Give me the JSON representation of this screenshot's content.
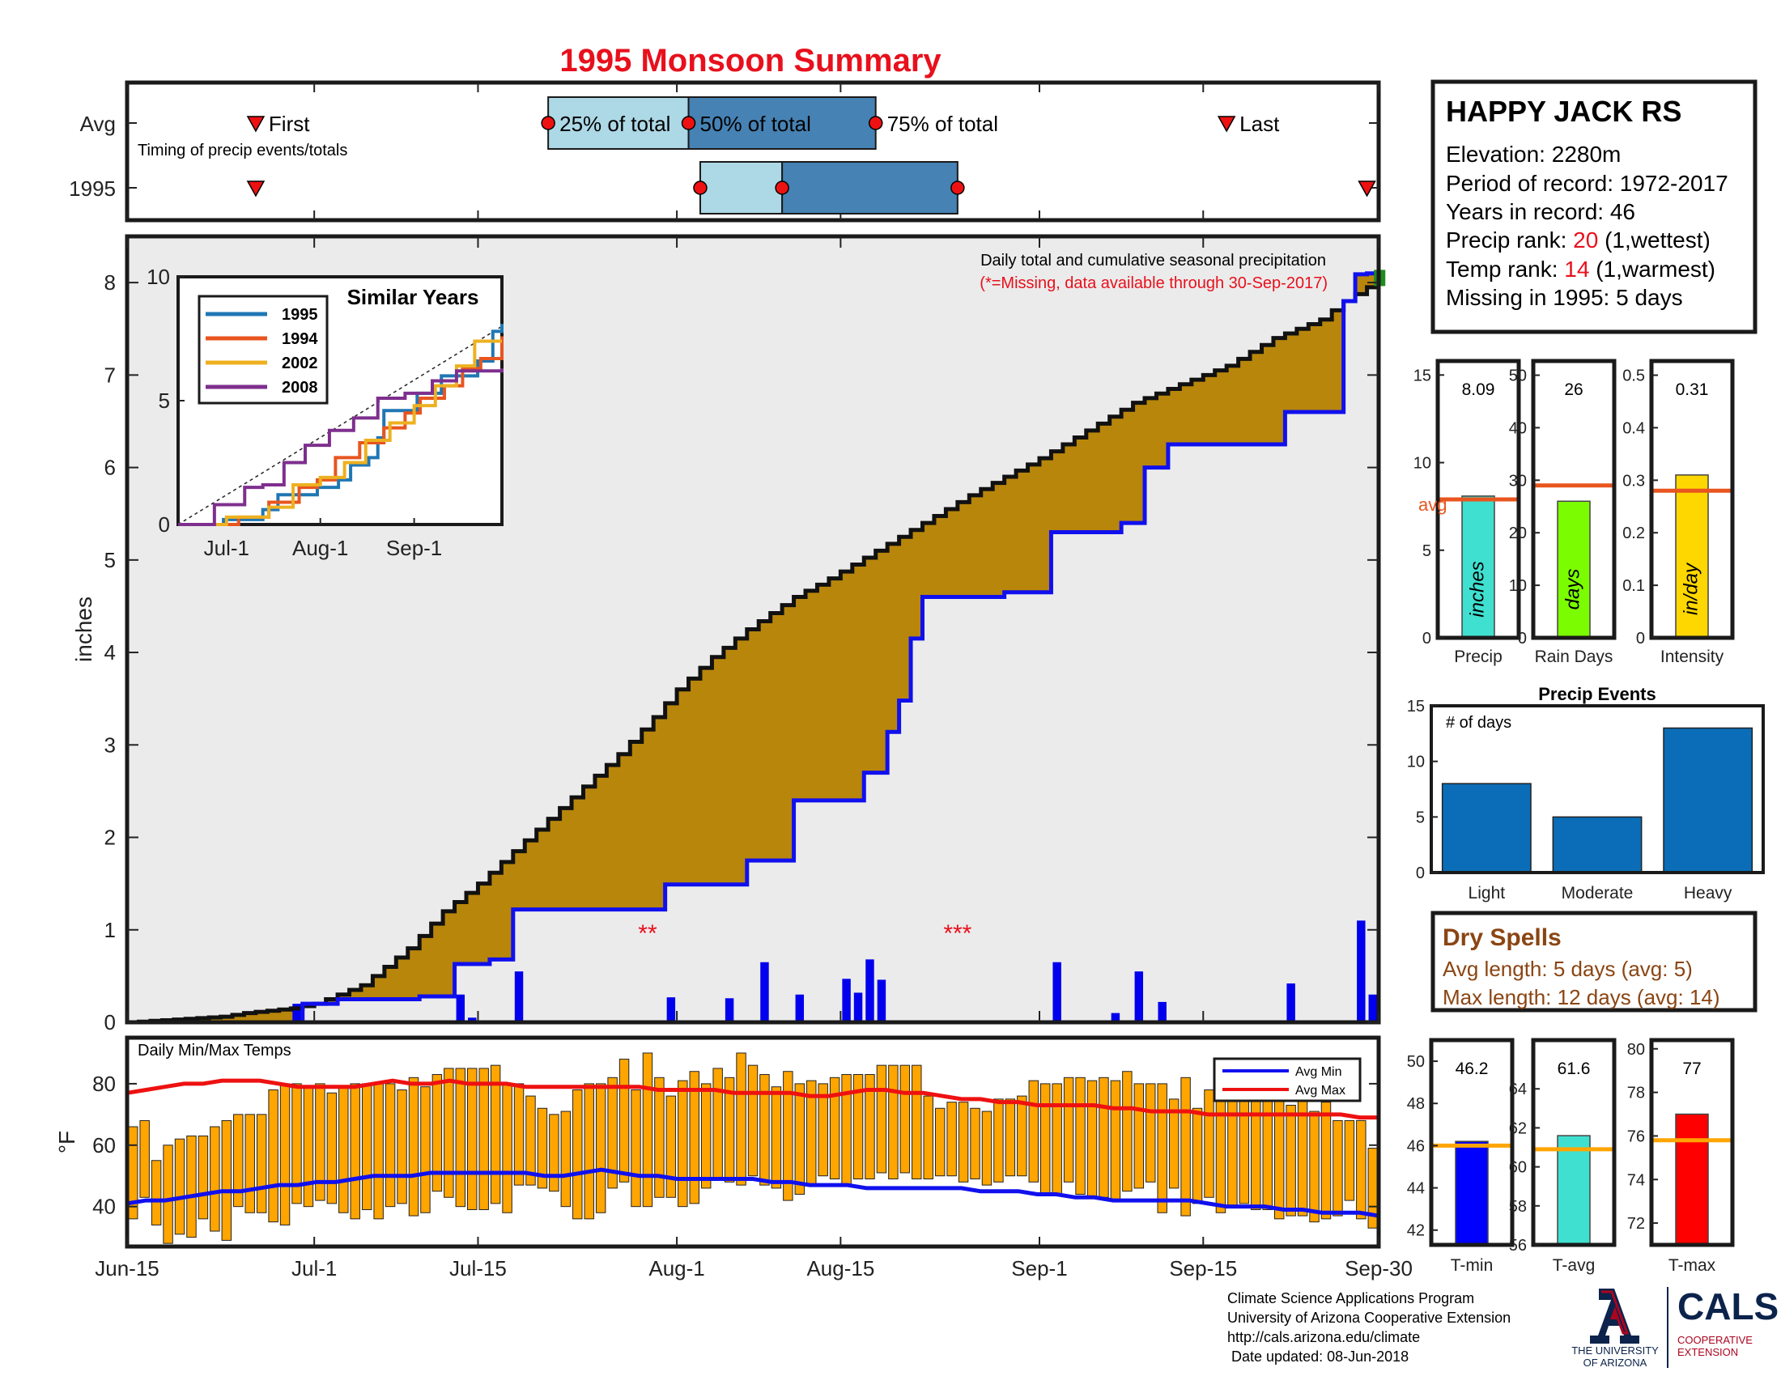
{
  "title": "1995 Monsoon Summary",
  "timing": {
    "row_labels": [
      "Avg",
      "1995"
    ],
    "note": "Timing of precip events/totals",
    "x_range_days": [
      0,
      107
    ],
    "avg": {
      "first_day": 11,
      "q25_day": 36,
      "q50_day": 48,
      "q75_day": 64,
      "last_day": 94,
      "first_label": "First",
      "q25_label": "25% of total",
      "q50_label": "50% of total",
      "q75_label": "75% of total",
      "last_label": "Last"
    },
    "year": {
      "first_day": 11,
      "q25_day": 49,
      "q50_day": 56,
      "q75_day": 71,
      "last_day": 106
    }
  },
  "station": {
    "name": "HAPPY JACK RS",
    "elevation": "Elevation: 2280m",
    "period": "Period of record: 1972-2017",
    "years": "Years in record: 46",
    "precip_rank_prefix": "Precip rank: ",
    "precip_rank_value": "20",
    "precip_rank_suffix": " (1,wettest)",
    "temp_rank_prefix": "Temp rank: ",
    "temp_rank_value": "14",
    "temp_rank_suffix": " (1,warmest)",
    "missing": "Missing in 1995: 5 days"
  },
  "colors": {
    "title": "#e8101c",
    "precip_fill": "#b8860b",
    "cum_year": "#1010ee",
    "q_light": "#add8e6",
    "q_dark": "#4682b4",
    "bar_blue": "#0b6db7",
    "temp_bar": "#ffa500",
    "avg_line": "#e8551f",
    "accent_red": "#e8101c",
    "dry_brown": "#8b4513"
  },
  "chart_data": [
    {
      "type": "area",
      "name": "precip-main",
      "annotation": "Daily total and cumulative seasonal precipitation",
      "annotation_red": "(*=Missing, data available through 30-Sep-2017)",
      "ylabel": "inches",
      "ylim": [
        0,
        8.5
      ],
      "yticks": [
        0,
        1,
        2,
        3,
        4,
        5,
        6,
        7,
        8
      ],
      "xlim_days": [
        0,
        107
      ],
      "x_tick_days": [
        0,
        16,
        30,
        47,
        61,
        78,
        92,
        107
      ],
      "x_tick_labels": [
        "Jun-15",
        "Jul-1",
        "Jul-15",
        "Aug-1",
        "Aug-15",
        "Sep-1",
        "Sep-15",
        "Sep-30"
      ],
      "missing_markers": [
        {
          "day": 44.5,
          "y": 1.0,
          "text": "**"
        },
        {
          "day": 71.0,
          "y": 1.0,
          "text": "***"
        }
      ],
      "avg_cumulative": [
        [
          0,
          0.0
        ],
        [
          8,
          0.06
        ],
        [
          10,
          0.1
        ],
        [
          14,
          0.15
        ],
        [
          16,
          0.2
        ],
        [
          18,
          0.3
        ],
        [
          20,
          0.4
        ],
        [
          24,
          0.8
        ],
        [
          27,
          1.2
        ],
        [
          30,
          1.5
        ],
        [
          33,
          1.85
        ],
        [
          36,
          2.2
        ],
        [
          39,
          2.55
        ],
        [
          42,
          2.9
        ],
        [
          45,
          3.3
        ],
        [
          47,
          3.6
        ],
        [
          50,
          3.95
        ],
        [
          53,
          4.25
        ],
        [
          57,
          4.6
        ],
        [
          60,
          4.8
        ],
        [
          64,
          5.1
        ],
        [
          68,
          5.4
        ],
        [
          72,
          5.7
        ],
        [
          75,
          5.9
        ],
        [
          78,
          6.1
        ],
        [
          82,
          6.4
        ],
        [
          86,
          6.7
        ],
        [
          90,
          6.9
        ],
        [
          94,
          7.1
        ],
        [
          98,
          7.4
        ],
        [
          102,
          7.6
        ],
        [
          104,
          7.8
        ],
        [
          106,
          7.95
        ],
        [
          107,
          8.0
        ]
      ],
      "year_cumulative": [
        [
          0,
          0.0
        ],
        [
          14,
          0.0
        ],
        [
          15,
          0.2
        ],
        [
          18,
          0.25
        ],
        [
          25,
          0.28
        ],
        [
          28,
          0.63
        ],
        [
          31,
          0.68
        ],
        [
          33,
          1.22
        ],
        [
          46,
          1.49
        ],
        [
          53,
          1.75
        ],
        [
          57,
          2.4
        ],
        [
          63,
          2.7
        ],
        [
          65,
          3.14
        ],
        [
          66,
          3.48
        ],
        [
          67,
          4.15
        ],
        [
          68,
          4.6
        ],
        [
          75,
          4.65
        ],
        [
          79,
          5.3
        ],
        [
          85,
          5.4
        ],
        [
          87,
          6.0
        ],
        [
          89,
          6.25
        ],
        [
          99,
          6.6
        ],
        [
          104,
          7.8
        ],
        [
          105,
          8.09
        ],
        [
          106,
          8.1
        ],
        [
          107,
          8.1
        ]
      ],
      "daily_bars": [
        [
          14,
          0.2
        ],
        [
          28,
          0.3
        ],
        [
          29,
          0.05
        ],
        [
          33,
          0.55
        ],
        [
          46,
          0.27
        ],
        [
          51,
          0.26
        ],
        [
          54,
          0.65
        ],
        [
          57,
          0.3
        ],
        [
          61,
          0.47
        ],
        [
          62,
          0.32
        ],
        [
          63,
          0.68
        ],
        [
          64,
          0.46
        ],
        [
          79,
          0.65
        ],
        [
          84,
          0.1
        ],
        [
          86,
          0.55
        ],
        [
          88,
          0.22
        ],
        [
          99,
          0.42
        ],
        [
          105,
          1.1
        ],
        [
          106,
          0.3
        ]
      ]
    },
    {
      "type": "line",
      "name": "similar-years",
      "title": "Similar Years",
      "ylim": [
        0,
        10
      ],
      "yticks": [
        0,
        5,
        10
      ],
      "x_tick_days": [
        16,
        47,
        78
      ],
      "x_tick_labels": [
        "Jul-1",
        "Aug-1",
        "Sep-1"
      ],
      "avg_line": [
        [
          0,
          0
        ],
        [
          107,
          8.0
        ]
      ],
      "series": [
        {
          "name": "1995",
          "color": "#1f77b4",
          "points": [
            [
              0,
              0
            ],
            [
              15,
              0.2
            ],
            [
              28,
              0.6
            ],
            [
              33,
              1.2
            ],
            [
              46,
              1.5
            ],
            [
              53,
              1.8
            ],
            [
              57,
              2.4
            ],
            [
              63,
              2.7
            ],
            [
              66,
              3.5
            ],
            [
              68,
              4.6
            ],
            [
              79,
              5.3
            ],
            [
              87,
              6.0
            ],
            [
              99,
              6.6
            ],
            [
              104,
              7.8
            ],
            [
              107,
              8.1
            ]
          ]
        },
        {
          "name": "1994",
          "color": "#e8551f",
          "points": [
            [
              0,
              0
            ],
            [
              20,
              0.3
            ],
            [
              30,
              0.9
            ],
            [
              40,
              1.5
            ],
            [
              46,
              1.8
            ],
            [
              52,
              2.7
            ],
            [
              60,
              3.3
            ],
            [
              68,
              3.9
            ],
            [
              75,
              4.5
            ],
            [
              80,
              5.1
            ],
            [
              88,
              5.6
            ],
            [
              94,
              6.3
            ],
            [
              100,
              6.7
            ],
            [
              107,
              7.6
            ]
          ]
        },
        {
          "name": "2002",
          "color": "#edb120",
          "points": [
            [
              0,
              0
            ],
            [
              16,
              0.3
            ],
            [
              30,
              0.7
            ],
            [
              38,
              1.6
            ],
            [
              47,
              1.9
            ],
            [
              55,
              2.5
            ],
            [
              62,
              3.4
            ],
            [
              70,
              4.1
            ],
            [
              78,
              4.8
            ],
            [
              85,
              5.6
            ],
            [
              92,
              6.4
            ],
            [
              98,
              7.4
            ],
            [
              107,
              7.4
            ]
          ]
        },
        {
          "name": "2008",
          "color": "#7e2f8e",
          "points": [
            [
              0,
              0
            ],
            [
              12,
              0.8
            ],
            [
              22,
              1.5
            ],
            [
              28,
              1.6
            ],
            [
              35,
              2.5
            ],
            [
              42,
              3.2
            ],
            [
              50,
              3.8
            ],
            [
              58,
              4.3
            ],
            [
              66,
              5.1
            ],
            [
              75,
              5.3
            ],
            [
              84,
              5.8
            ],
            [
              92,
              6.2
            ],
            [
              100,
              6.2
            ],
            [
              107,
              6.3
            ]
          ]
        }
      ]
    },
    {
      "type": "bar",
      "name": "daily-temps",
      "title": "Daily Min/Max Temps",
      "ylabel": "°F",
      "ylim": [
        27,
        95
      ],
      "yticks": [
        40,
        60,
        80
      ],
      "legend": [
        "Avg Min",
        "Avg Max"
      ],
      "legend_position": "top-right",
      "min": [
        36,
        43,
        34,
        28,
        31,
        30,
        36,
        32,
        29,
        40,
        38,
        38,
        35,
        34,
        41,
        40,
        42,
        41,
        38,
        36,
        39,
        36,
        40,
        41,
        37,
        38,
        45,
        43,
        40,
        39,
        39,
        41,
        38,
        47,
        47,
        46,
        45,
        40,
        36,
        36,
        38,
        46,
        48,
        40,
        40,
        43,
        43,
        40,
        41,
        46,
        49,
        48,
        47,
        50,
        47,
        46,
        42,
        44,
        47,
        50,
        49,
        47,
        49,
        49,
        51,
        49,
        51,
        49,
        49,
        50,
        50,
        48,
        49,
        47,
        48,
        50,
        50,
        48,
        44,
        44,
        48,
        44,
        43,
        43,
        42,
        45,
        46,
        48,
        38,
        46,
        37,
        41,
        43,
        38,
        40,
        41,
        39,
        39,
        36,
        37,
        37,
        35,
        36,
        37,
        42,
        36,
        33
      ],
      "max": [
        66,
        68,
        55,
        60,
        62,
        63,
        63,
        66,
        68,
        70,
        70,
        70,
        78,
        80,
        80,
        79,
        80,
        77,
        79,
        80,
        80,
        80,
        80,
        78,
        82,
        79,
        83,
        85,
        85,
        85,
        85,
        86,
        80,
        80,
        76,
        72,
        70,
        71,
        78,
        80,
        80,
        82,
        88,
        78,
        90,
        82,
        76,
        81,
        84,
        80,
        85,
        82,
        90,
        86,
        83,
        79,
        84,
        80,
        81,
        80,
        82,
        83,
        83,
        83,
        86,
        86,
        86,
        86,
        76,
        72,
        74,
        74,
        72,
        71,
        75,
        75,
        76,
        81,
        80,
        80,
        82,
        82,
        81,
        82,
        81,
        84,
        80,
        80,
        80,
        75,
        82,
        72,
        78,
        78,
        76,
        78,
        77,
        75,
        75,
        73,
        80,
        71,
        74,
        68,
        68,
        68,
        59
      ],
      "avg_min": [
        41,
        42,
        42,
        43,
        44,
        45,
        45,
        46,
        47,
        47,
        48,
        48,
        49,
        50,
        50,
        50,
        51,
        51,
        51,
        51,
        51,
        51,
        50,
        50,
        51,
        52,
        51,
        50,
        50,
        49,
        49,
        49,
        49,
        49,
        48,
        48,
        47,
        47,
        47,
        46,
        46,
        46,
        46,
        46,
        46,
        45,
        45,
        45,
        44,
        44,
        43,
        43,
        42,
        42,
        42,
        42,
        42,
        41,
        40,
        40,
        40,
        39,
        39,
        38,
        38,
        38,
        37
      ],
      "avg_max": [
        77,
        78,
        79,
        80,
        80,
        81,
        81,
        81,
        80,
        79,
        79,
        79,
        79,
        80,
        81,
        80,
        80,
        81,
        80,
        80,
        80,
        79,
        79,
        79,
        79,
        79,
        79,
        79,
        78,
        78,
        78,
        78,
        77,
        77,
        77,
        77,
        76,
        76,
        77,
        78,
        78,
        77,
        77,
        76,
        75,
        75,
        74,
        74,
        73,
        73,
        73,
        73,
        72,
        72,
        71,
        71,
        71,
        70,
        70,
        70,
        70,
        70,
        70,
        70,
        70,
        69,
        69
      ]
    },
    {
      "type": "bar",
      "name": "mini-precip",
      "panels": [
        {
          "label": "Precip",
          "value": 8.09,
          "value_text": "8.09",
          "avg": 7.9,
          "avg_text": "avg",
          "unit": "inches",
          "ylim": [
            0,
            15.8
          ],
          "yticks": [
            0,
            5,
            10,
            15
          ],
          "color": "#40e0d0"
        },
        {
          "label": "Rain Days",
          "value": 26,
          "value_text": "26",
          "avg": 29,
          "unit": "days",
          "ylim": [
            0,
            52.7
          ],
          "yticks": [
            0,
            10,
            20,
            30,
            40,
            50
          ],
          "color": "#7cfc00"
        },
        {
          "label": "Intensity",
          "value": 0.31,
          "value_text": "0.31",
          "avg": 0.28,
          "unit": "in/day",
          "ylim": [
            0,
            0.527
          ],
          "yticks": [
            0,
            0.1,
            0.2,
            0.3,
            0.4,
            0.5
          ],
          "color": "#ffd700"
        }
      ]
    },
    {
      "type": "bar",
      "name": "precip-events",
      "title": "Precip Events",
      "ylabel": "# of days",
      "categories": [
        "Light",
        "Moderate",
        "Heavy"
      ],
      "values": [
        8,
        5,
        13
      ],
      "ylim": [
        0,
        15
      ],
      "yticks": [
        0,
        5,
        10,
        15
      ]
    },
    {
      "type": "bar",
      "name": "mini-temps",
      "panels": [
        {
          "label": "T-min",
          "value": 46.2,
          "value_text": "46.2",
          "avg": 46.0,
          "ylim": [
            41.3,
            51
          ],
          "yticks": [
            42,
            44,
            46,
            48,
            50
          ],
          "color": "#0000ff"
        },
        {
          "label": "T-avg",
          "value": 61.6,
          "value_text": "61.6",
          "avg": 60.9,
          "ylim": [
            56,
            66.5
          ],
          "yticks": [
            56,
            58,
            60,
            62,
            64
          ],
          "color": "#40e0d0"
        },
        {
          "label": "T-max",
          "value": 77,
          "value_text": "77",
          "avg": 75.8,
          "ylim": [
            71,
            80.4
          ],
          "yticks": [
            72,
            74,
            76,
            78,
            80
          ],
          "color": "#ff0000"
        }
      ]
    }
  ],
  "dry_spells": {
    "title": "Dry Spells",
    "avg_length": "Avg length: 5 days (avg: 5)",
    "max_length": "Max length: 12 days (avg: 14)"
  },
  "footer": {
    "line1": "Climate Science Applications Program",
    "line2": "University of Arizona Cooperative Extension",
    "line3": "http://cals.arizona.edu/climate",
    "line4": " Date updated: 08-Jun-2018",
    "ua_name_1": "THE UNIVERSITY",
    "ua_name_2": "OF ARIZONA",
    "cals": "CALS",
    "cals_sub_1": "COOPERATIVE",
    "cals_sub_2": "EXTENSION"
  }
}
